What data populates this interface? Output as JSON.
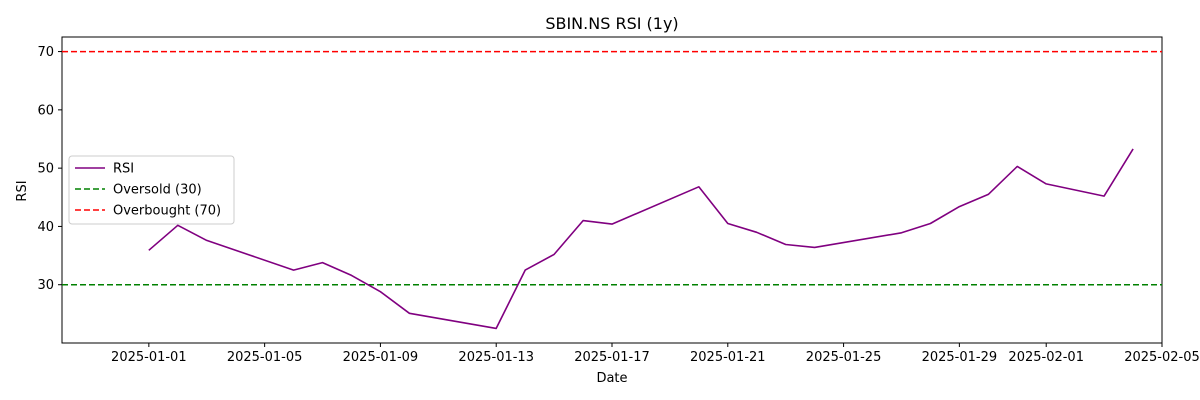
{
  "chart_data": {
    "type": "line",
    "title": "SBIN.NS RSI (1y)",
    "xlabel": "Date",
    "ylabel": "RSI",
    "x_type": "date",
    "xlim": [
      "2024-12-29",
      "2025-02-05"
    ],
    "ylim": [
      20,
      72.5
    ],
    "grid": false,
    "x_ticks": [
      "2025-01-01",
      "2025-01-05",
      "2025-01-09",
      "2025-01-13",
      "2025-01-17",
      "2025-01-21",
      "2025-01-25",
      "2025-01-29",
      "2025-02-01",
      "2025-02-05"
    ],
    "y_ticks": [
      30,
      40,
      50,
      60,
      70
    ],
    "legend_position": "center-left",
    "series": [
      {
        "name": "RSI",
        "color": "#800080",
        "style": "solid",
        "points": [
          {
            "x": "2025-01-01",
            "y": 35.9
          },
          {
            "x": "2025-01-02",
            "y": 40.2
          },
          {
            "x": "2025-01-03",
            "y": 37.6
          },
          {
            "x": "2025-01-06",
            "y": 32.5
          },
          {
            "x": "2025-01-07",
            "y": 33.8
          },
          {
            "x": "2025-01-08",
            "y": 31.6
          },
          {
            "x": "2025-01-09",
            "y": 28.8
          },
          {
            "x": "2025-01-10",
            "y": 25.1
          },
          {
            "x": "2025-01-13",
            "y": 22.5
          },
          {
            "x": "2025-01-14",
            "y": 32.5
          },
          {
            "x": "2025-01-15",
            "y": 35.2
          },
          {
            "x": "2025-01-16",
            "y": 41.0
          },
          {
            "x": "2025-01-17",
            "y": 40.4
          },
          {
            "x": "2025-01-20",
            "y": 46.8
          },
          {
            "x": "2025-01-21",
            "y": 40.5
          },
          {
            "x": "2025-01-22",
            "y": 39.0
          },
          {
            "x": "2025-01-23",
            "y": 36.9
          },
          {
            "x": "2025-01-24",
            "y": 36.4
          },
          {
            "x": "2025-01-27",
            "y": 38.9
          },
          {
            "x": "2025-01-28",
            "y": 40.5
          },
          {
            "x": "2025-01-29",
            "y": 43.4
          },
          {
            "x": "2025-01-30",
            "y": 45.5
          },
          {
            "x": "2025-01-31",
            "y": 50.3
          },
          {
            "x": "2025-02-01",
            "y": 47.3
          },
          {
            "x": "2025-02-03",
            "y": 45.2
          },
          {
            "x": "2025-02-04",
            "y": 53.3
          }
        ]
      },
      {
        "name": "Oversold (30)",
        "color": "#008000",
        "style": "dashed",
        "hline": 30
      },
      {
        "name": "Overbought (70)",
        "color": "#ff0000",
        "style": "dashed",
        "hline": 70
      }
    ]
  }
}
